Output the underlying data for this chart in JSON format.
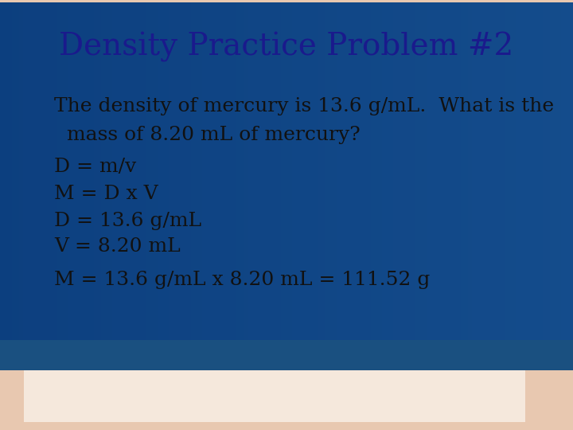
{
  "title": "Density Practice Problem #2",
  "title_color": "#1a1a8c",
  "title_fontsize": 28,
  "body_lines": [
    "The density of mercury is 13.6 g/mL.  What is the",
    "  mass of 8.20 mL of mercury?",
    "D = m/v",
    "M = D x V",
    "D = 13.6 g/mL",
    "V = 8.20 mL",
    "M = 13.6 g/mL x 8.20 mL = 111.52 g"
  ],
  "body_color": "#111111",
  "body_fontsize": 18,
  "figsize": [
    7.2,
    5.4
  ],
  "dpi": 100
}
